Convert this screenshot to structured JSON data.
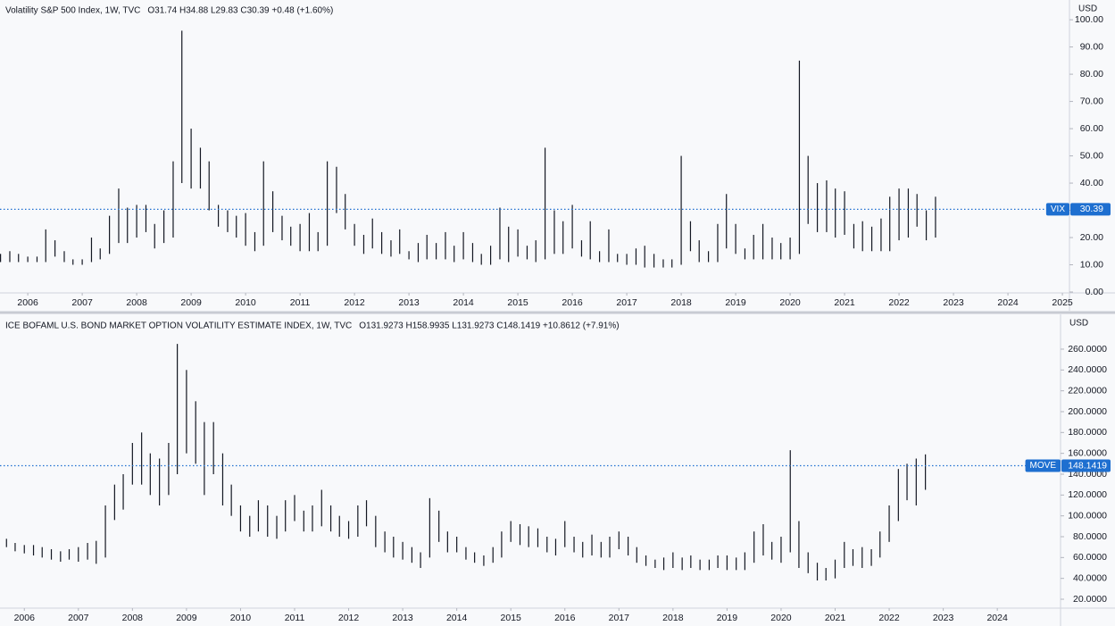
{
  "chart_data": [
    {
      "type": "hlbar",
      "title": "Volatility S&P 500 Index, 1W, TVC",
      "ohlc": "O31.74  H34.88  L29.83  C30.39  +0.48 (+1.60%)",
      "currency": "USD",
      "symbol": "VIX",
      "last": 30.39,
      "color": "#131722",
      "line_color": "#1e6fd0",
      "xlim": [
        2005.49,
        2025.13
      ],
      "xticks": [
        2006,
        2007,
        2008,
        2009,
        2010,
        2011,
        2012,
        2013,
        2014,
        2015,
        2016,
        2017,
        2018,
        2019,
        2020,
        2021,
        2022,
        2023,
        2024,
        2025
      ],
      "ylim": [
        0,
        106.6
      ],
      "yticks": [
        {
          "value": 0,
          "label": "0.00"
        },
        {
          "value": 10,
          "label": "10.00"
        },
        {
          "value": 20,
          "label": "20.00"
        },
        {
          "value": 30,
          "label": "30.00"
        },
        {
          "value": 40,
          "label": "40.00"
        },
        {
          "value": 50,
          "label": "50.00"
        },
        {
          "value": 60,
          "label": "60.00"
        },
        {
          "value": 70,
          "label": "70.00"
        },
        {
          "value": 80,
          "label": "80.00"
        },
        {
          "value": 90,
          "label": "90.00"
        },
        {
          "value": 100,
          "label": "100.00"
        }
      ],
      "x": [
        2005.5,
        2005.67,
        2005.83,
        2006,
        2006.17,
        2006.33,
        2006.5,
        2006.67,
        2006.83,
        2007,
        2007.17,
        2007.33,
        2007.5,
        2007.67,
        2007.83,
        2008,
        2008.17,
        2008.33,
        2008.5,
        2008.67,
        2008.83,
        2009,
        2009.17,
        2009.33,
        2009.5,
        2009.67,
        2009.83,
        2010,
        2010.17,
        2010.33,
        2010.5,
        2010.67,
        2010.83,
        2011,
        2011.17,
        2011.33,
        2011.5,
        2011.67,
        2011.83,
        2012,
        2012.17,
        2012.33,
        2012.5,
        2012.67,
        2012.83,
        2013,
        2013.17,
        2013.33,
        2013.5,
        2013.67,
        2013.83,
        2014,
        2014.17,
        2014.33,
        2014.5,
        2014.67,
        2014.83,
        2015,
        2015.17,
        2015.33,
        2015.5,
        2015.67,
        2015.83,
        2016,
        2016.17,
        2016.33,
        2016.5,
        2016.67,
        2016.83,
        2017,
        2017.17,
        2017.33,
        2017.5,
        2017.67,
        2017.83,
        2018,
        2018.17,
        2018.33,
        2018.5,
        2018.67,
        2018.83,
        2019,
        2019.17,
        2019.33,
        2019.5,
        2019.67,
        2019.83,
        2020,
        2020.17,
        2020.33,
        2020.5,
        2020.67,
        2020.83,
        2021,
        2021.17,
        2021.33,
        2021.5,
        2021.67,
        2021.83,
        2022,
        2022.17,
        2022.33,
        2022.5,
        2022.67
      ],
      "high": [
        14,
        15,
        14,
        13,
        13,
        23,
        19,
        15,
        12,
        12,
        20,
        16,
        28,
        38,
        31,
        32,
        32,
        25,
        30,
        48,
        96,
        60,
        53,
        48,
        32,
        30,
        28,
        29,
        22,
        48,
        37,
        28,
        24,
        25,
        29,
        22,
        48,
        46,
        36,
        25,
        21,
        27,
        22,
        19,
        23,
        15,
        18,
        21,
        18,
        22,
        17,
        22,
        18,
        14,
        17,
        31,
        24,
        23,
        17,
        19,
        53,
        30,
        26,
        32,
        19,
        26,
        15,
        23,
        14,
        14,
        16,
        17,
        14,
        12,
        12,
        50,
        26,
        19,
        15,
        25,
        36,
        25,
        16,
        21,
        25,
        20,
        18,
        20,
        85,
        50,
        40,
        41,
        38,
        37,
        25,
        26,
        24,
        27,
        35,
        38,
        38,
        36,
        30,
        35
      ],
      "low": [
        11,
        11,
        11,
        11,
        11,
        11,
        13,
        11,
        10,
        10,
        11,
        12,
        14,
        18,
        18,
        20,
        22,
        16,
        18,
        20,
        40,
        38,
        38,
        30,
        24,
        22,
        20,
        17,
        15,
        17,
        22,
        19,
        17,
        15,
        15,
        15,
        17,
        29,
        23,
        17,
        14,
        16,
        14,
        13,
        14,
        12,
        11,
        12,
        12,
        12,
        11,
        12,
        11,
        10,
        10,
        12,
        11,
        13,
        12,
        11,
        12,
        14,
        14,
        16,
        13,
        12,
        11,
        11,
        11,
        10,
        10,
        9,
        9,
        9,
        9,
        10,
        15,
        11,
        11,
        11,
        16,
        14,
        12,
        12,
        12,
        12,
        12,
        12,
        14,
        25,
        22,
        22,
        20,
        21,
        16,
        15,
        15,
        15,
        15,
        19,
        20,
        24,
        19,
        20
      ]
    },
    {
      "type": "hlbar",
      "title": "ICE BOFAML U.S. BOND MARKET OPTION VOLATILITY ESTIMATE INDEX, 1W, TVC",
      "ohlc": "O131.9273  H158.9935  L131.9273  C148.1419  +10.8612 (+7.91%)",
      "currency": "USD",
      "symbol": "MOVE",
      "last": 148.1419,
      "color": "#131722",
      "line_color": "#1e6fd0",
      "xlim": [
        2005.55,
        2025.17
      ],
      "xticks": [
        2006,
        2007,
        2008,
        2009,
        2010,
        2011,
        2012,
        2013,
        2014,
        2015,
        2016,
        2017,
        2018,
        2019,
        2020,
        2021,
        2022,
        2023,
        2024
      ],
      "ylim": [
        12.3,
        275.4
      ],
      "yticks": [
        {
          "value": 20,
          "label": "20.0000"
        },
        {
          "value": 40,
          "label": "40.0000"
        },
        {
          "value": 60,
          "label": "60.0000"
        },
        {
          "value": 80,
          "label": "80.0000"
        },
        {
          "value": 100,
          "label": "100.0000"
        },
        {
          "value": 120,
          "label": "120.0000"
        },
        {
          "value": 140,
          "label": "140.0000"
        },
        {
          "value": 160,
          "label": "160.0000"
        },
        {
          "value": 180,
          "label": "180.0000"
        },
        {
          "value": 200,
          "label": "200.0000"
        },
        {
          "value": 220,
          "label": "220.0000"
        },
        {
          "value": 240,
          "label": "240.0000"
        },
        {
          "value": 260,
          "label": "260.0000"
        }
      ],
      "x": [
        2005.5,
        2005.67,
        2005.83,
        2006,
        2006.17,
        2006.33,
        2006.5,
        2006.67,
        2006.83,
        2007,
        2007.17,
        2007.33,
        2007.5,
        2007.67,
        2007.83,
        2008,
        2008.17,
        2008.33,
        2008.5,
        2008.67,
        2008.83,
        2009,
        2009.17,
        2009.33,
        2009.5,
        2009.67,
        2009.83,
        2010,
        2010.17,
        2010.33,
        2010.5,
        2010.67,
        2010.83,
        2011,
        2011.17,
        2011.33,
        2011.5,
        2011.67,
        2011.83,
        2012,
        2012.17,
        2012.33,
        2012.5,
        2012.67,
        2012.83,
        2013,
        2013.17,
        2013.33,
        2013.5,
        2013.67,
        2013.83,
        2014,
        2014.17,
        2014.33,
        2014.5,
        2014.67,
        2014.83,
        2015,
        2015.17,
        2015.33,
        2015.5,
        2015.67,
        2015.83,
        2016,
        2016.17,
        2016.33,
        2016.5,
        2016.67,
        2016.83,
        2017,
        2017.17,
        2017.33,
        2017.5,
        2017.67,
        2017.83,
        2018,
        2018.17,
        2018.33,
        2018.5,
        2018.67,
        2018.83,
        2019,
        2019.17,
        2019.33,
        2019.5,
        2019.67,
        2019.83,
        2020,
        2020.17,
        2020.33,
        2020.5,
        2020.67,
        2020.83,
        2021,
        2021.17,
        2021.33,
        2021.5,
        2021.67,
        2021.83,
        2022,
        2022.17,
        2022.33,
        2022.5,
        2022.67
      ],
      "high": [
        82,
        78,
        74,
        72,
        72,
        70,
        68,
        66,
        68,
        70,
        74,
        76,
        110,
        130,
        140,
        170,
        180,
        160,
        155,
        170,
        265,
        240,
        210,
        190,
        190,
        160,
        130,
        110,
        100,
        115,
        110,
        100,
        115,
        120,
        105,
        110,
        125,
        110,
        100,
        95,
        110,
        115,
        100,
        85,
        80,
        75,
        70,
        65,
        117,
        105,
        85,
        80,
        70,
        65,
        62,
        70,
        85,
        95,
        92,
        90,
        88,
        80,
        78,
        95,
        80,
        75,
        82,
        75,
        80,
        85,
        80,
        70,
        62,
        58,
        60,
        65,
        60,
        62,
        58,
        58,
        62,
        62,
        60,
        65,
        85,
        92,
        75,
        80,
        163,
        95,
        65,
        55,
        50,
        58,
        75,
        68,
        70,
        68,
        85,
        110,
        145,
        150,
        155,
        159
      ],
      "low": [
        74,
        70,
        66,
        64,
        62,
        60,
        58,
        56,
        58,
        56,
        58,
        54,
        60,
        96,
        106,
        130,
        130,
        120,
        110,
        120,
        140,
        160,
        150,
        120,
        140,
        110,
        100,
        85,
        80,
        85,
        80,
        78,
        85,
        95,
        85,
        85,
        90,
        85,
        80,
        78,
        80,
        90,
        70,
        65,
        60,
        58,
        55,
        50,
        60,
        75,
        65,
        65,
        58,
        55,
        52,
        55,
        60,
        75,
        72,
        70,
        70,
        65,
        62,
        70,
        65,
        60,
        62,
        60,
        60,
        68,
        62,
        55,
        52,
        50,
        48,
        50,
        48,
        50,
        48,
        48,
        50,
        48,
        48,
        48,
        55,
        62,
        58,
        55,
        65,
        50,
        45,
        38,
        38,
        40,
        50,
        52,
        50,
        52,
        60,
        75,
        95,
        115,
        110,
        125
      ]
    }
  ]
}
